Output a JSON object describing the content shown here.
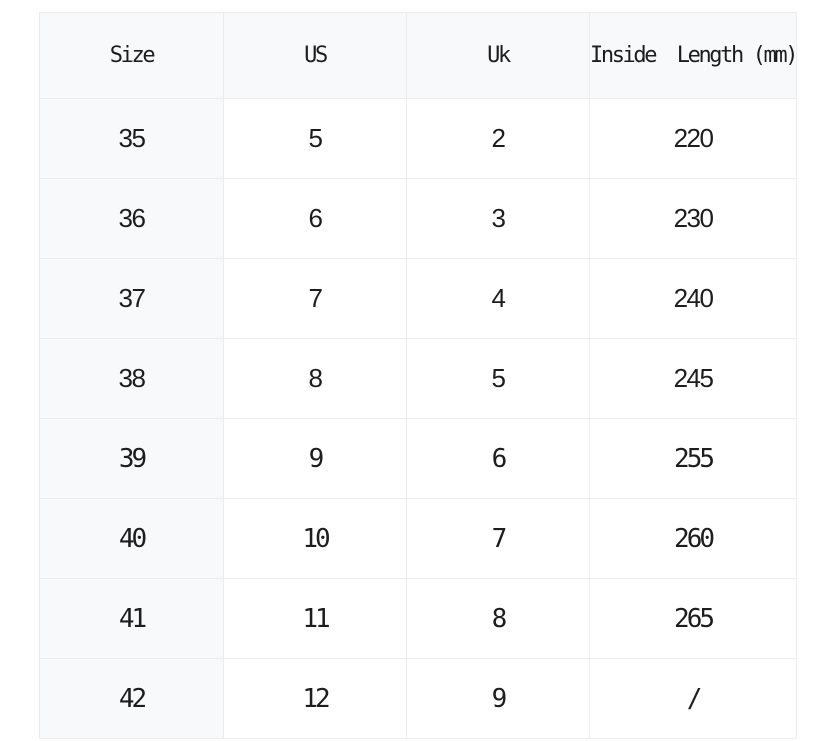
{
  "chart_data": {
    "type": "table",
    "columns": [
      "Size",
      "US",
      "Uk",
      "Inside  Length (mm)"
    ],
    "rows": [
      [
        "35",
        "5",
        "2",
        "220"
      ],
      [
        "36",
        "6",
        "3",
        "230"
      ],
      [
        "37",
        "7",
        "4",
        "240"
      ],
      [
        "38",
        "8",
        "5",
        "245"
      ],
      [
        "39",
        "9",
        "6",
        "255"
      ],
      [
        "40",
        "10",
        "7",
        "260"
      ],
      [
        "41",
        "11",
        "8",
        "265"
      ],
      [
        "42",
        "12",
        "9",
        "/"
      ]
    ]
  },
  "colors": {
    "page_background": "#ffffff",
    "header_background": "#f8f9fa",
    "first_column_background": "#f8f9fa",
    "border": "#eaecee",
    "text": "#1d1d1f"
  }
}
